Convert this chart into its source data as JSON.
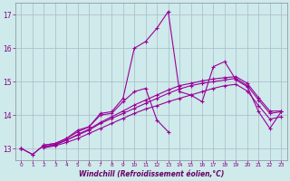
{
  "xlabel": "Windchill (Refroidissement éolien,°C)",
  "bg_color": "#ceeaea",
  "grid_color": "#aab8cc",
  "line_color": "#990099",
  "xlim": [
    -0.5,
    23.5
  ],
  "ylim": [
    12.65,
    17.35
  ],
  "xticks": [
    0,
    1,
    2,
    3,
    4,
    5,
    6,
    7,
    8,
    9,
    10,
    11,
    12,
    13,
    14,
    15,
    16,
    17,
    18,
    19,
    20,
    21,
    22,
    23
  ],
  "yticks": [
    13,
    14,
    15,
    16,
    17
  ],
  "series": [
    [
      13.0,
      12.82,
      13.1,
      13.15,
      13.3,
      13.5,
      13.65,
      14.05,
      14.1,
      14.5,
      16.0,
      16.2,
      16.6,
      17.1,
      14.7,
      14.6,
      14.4,
      15.45,
      15.6,
      15.05,
      14.85,
      14.1,
      13.6,
      14.1
    ],
    [
      13.0,
      12.82,
      13.1,
      13.15,
      13.3,
      13.55,
      13.65,
      14.0,
      14.05,
      14.4,
      14.7,
      14.8,
      13.85,
      13.5,
      null,
      null,
      null,
      null,
      null,
      null,
      null,
      null,
      null,
      null
    ],
    [
      13.0,
      null,
      13.05,
      13.1,
      13.25,
      13.4,
      13.55,
      13.75,
      13.9,
      14.05,
      14.2,
      14.35,
      14.5,
      14.65,
      14.78,
      14.88,
      14.95,
      15.0,
      15.05,
      15.1,
      14.88,
      14.45,
      14.05,
      14.1
    ],
    [
      13.0,
      null,
      13.05,
      13.12,
      13.25,
      13.42,
      13.58,
      13.78,
      13.95,
      14.12,
      14.3,
      14.45,
      14.6,
      14.75,
      14.88,
      14.95,
      15.02,
      15.08,
      15.12,
      15.15,
      14.95,
      14.52,
      14.12,
      14.12
    ],
    [
      13.0,
      null,
      13.02,
      13.08,
      13.18,
      13.3,
      13.45,
      13.6,
      13.75,
      13.9,
      14.05,
      14.18,
      14.28,
      14.4,
      14.5,
      14.6,
      14.7,
      14.8,
      14.88,
      14.92,
      14.72,
      14.28,
      13.88,
      13.95
    ]
  ]
}
